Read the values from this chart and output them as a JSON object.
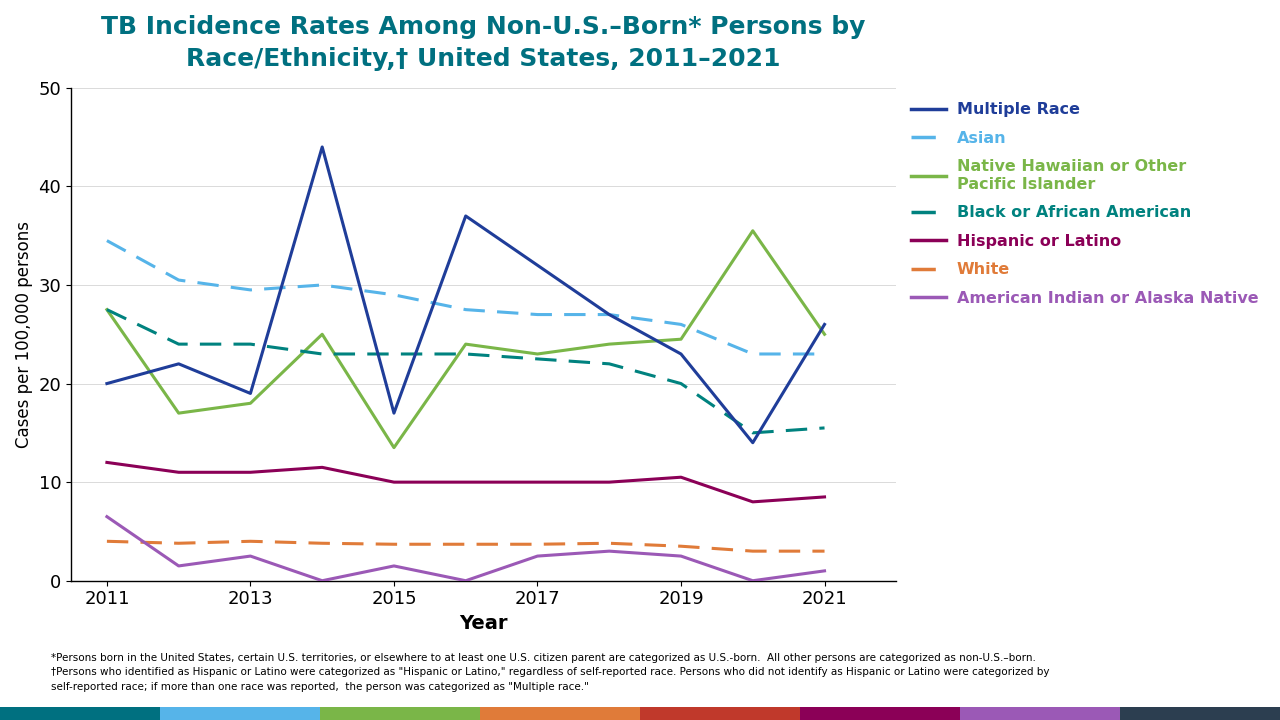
{
  "years": [
    2011,
    2012,
    2013,
    2014,
    2015,
    2016,
    2017,
    2018,
    2019,
    2020,
    2021
  ],
  "series": [
    {
      "label": "Multiple Race",
      "values": [
        20.0,
        22.0,
        19.0,
        44.0,
        17.0,
        37.0,
        32.0,
        27.0,
        23.0,
        14.0,
        26.0
      ],
      "color": "#1f3d99",
      "linestyle": "solid",
      "linewidth": 2.2,
      "zorder": 5
    },
    {
      "label": "Asian",
      "values": [
        34.5,
        30.5,
        29.5,
        30.0,
        29.0,
        27.5,
        27.0,
        27.0,
        26.0,
        23.0,
        23.0
      ],
      "color": "#56b4e9",
      "linestyle": "dashed",
      "linewidth": 2.2,
      "zorder": 4
    },
    {
      "label": "Native Hawaiian or Other\nPacific Islander",
      "values": [
        27.5,
        17.0,
        18.0,
        25.0,
        13.5,
        24.0,
        23.0,
        24.0,
        24.5,
        35.5,
        25.0
      ],
      "color": "#7ab648",
      "linestyle": "solid",
      "linewidth": 2.2,
      "zorder": 4
    },
    {
      "label": "Black or African American",
      "values": [
        27.5,
        24.0,
        24.0,
        23.0,
        23.0,
        23.0,
        22.5,
        22.0,
        20.0,
        15.0,
        15.5
      ],
      "color": "#00827f",
      "linestyle": "dashed",
      "linewidth": 2.2,
      "zorder": 4
    },
    {
      "label": "Hispanic or Latino",
      "values": [
        12.0,
        11.0,
        11.0,
        11.5,
        10.0,
        10.0,
        10.0,
        10.0,
        10.5,
        8.0,
        8.5
      ],
      "color": "#8b0057",
      "linestyle": "solid",
      "linewidth": 2.2,
      "zorder": 3
    },
    {
      "label": "White",
      "values": [
        4.0,
        3.8,
        4.0,
        3.8,
        3.7,
        3.7,
        3.7,
        3.8,
        3.5,
        3.0,
        3.0
      ],
      "color": "#e07b39",
      "linestyle": "dashed",
      "linewidth": 2.2,
      "zorder": 3
    },
    {
      "label": "American Indian or Alaska Native",
      "values": [
        6.5,
        1.5,
        2.5,
        0.0,
        1.5,
        0.0,
        2.5,
        3.0,
        2.5,
        0.0,
        1.0
      ],
      "color": "#9b59b6",
      "linestyle": "solid",
      "linewidth": 2.2,
      "zorder": 3
    }
  ],
  "title_line1": "TB Incidence Rates Among Non-U.S.–Born* Persons by",
  "title_line2": "Race/Ethnicity,† United States, 2011–2021",
  "xlabel": "Year",
  "ylabel": "Cases per 100,000 persons",
  "ylim": [
    0,
    50
  ],
  "yticks": [
    0,
    10,
    20,
    30,
    40,
    50
  ],
  "xticks": [
    2011,
    2013,
    2015,
    2017,
    2019,
    2021
  ],
  "footnote1": "*Persons born in the United States, certain U.S. territories, or elsewhere to at least one U.S. citizen parent are categorized as U.S.-born.  All other persons are categorized as non-U.S.–born.",
  "footnote2": "†Persons who identified as Hispanic or Latino were categorized as \"Hispanic or Latino,\" regardless of self-reported race. Persons who did not identify as Hispanic or Latino were categorized by",
  "footnote3": "self-reported race; if more than one race was reported,  the person was categorized as \"Multiple race.\"",
  "title_color": "#007080",
  "bg_color": "#ffffff",
  "bottom_bar_colors": [
    "#007080",
    "#56b4e9",
    "#7ab648",
    "#e07b39",
    "#c0392b",
    "#8b0057",
    "#9b59b6",
    "#2c3e50"
  ]
}
